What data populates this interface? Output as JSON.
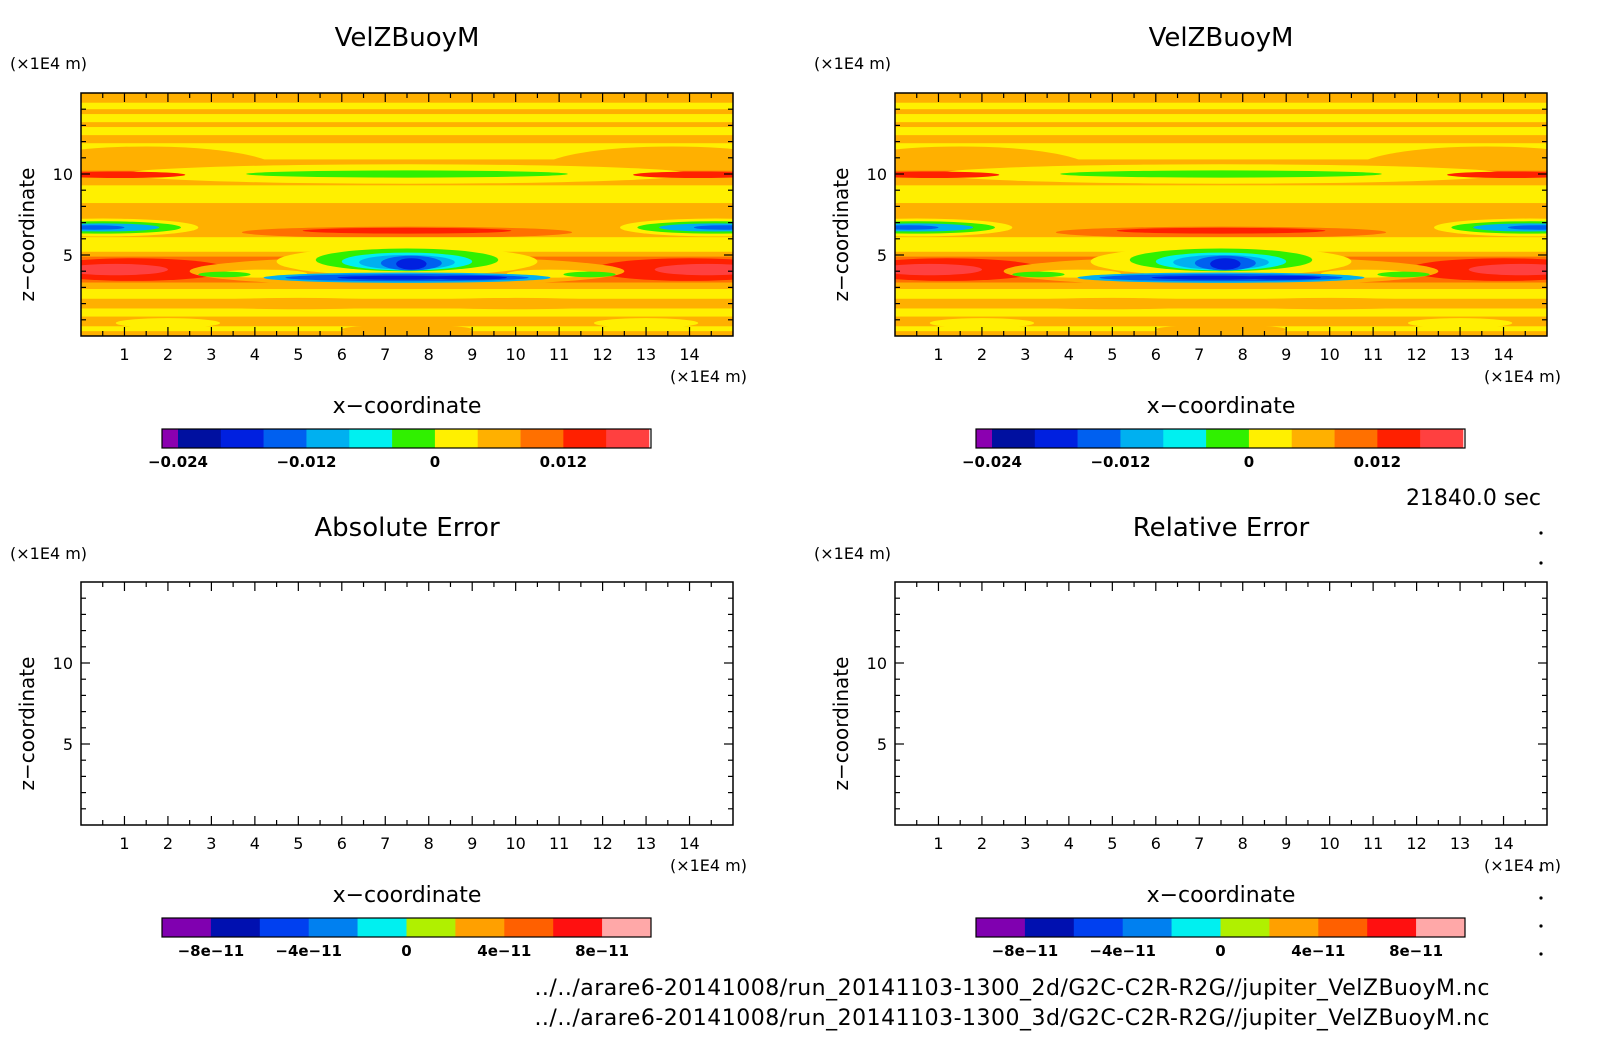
{
  "time_label": "21840.0 sec",
  "footer_lines": [
    "../../arare6-20141008/run_20141103-1300_2d/G2C-C2R-R2G//jupiter_VelZBuoyM.nc",
    "../../arare6-20141008/run_20141103-1300_3d/G2C-C2R-R2G//jupiter_VelZBuoyM.nc"
  ],
  "chart_data": [
    {
      "type": "heatmap",
      "title": "VelZBuoyM",
      "xlabel": "x−coordinate",
      "ylabel": "z−coordinate",
      "x_unit": "(×1E4 m)",
      "y_unit": "(×1E4 m)",
      "xlim": [
        0,
        15
      ],
      "ylim": [
        0,
        15
      ],
      "xticks": [
        "1",
        "2",
        "3",
        "4",
        "5",
        "6",
        "7",
        "8",
        "9",
        "10",
        "11",
        "12",
        "13",
        "14"
      ],
      "yticks": [
        "5",
        "10"
      ],
      "filled": true,
      "colorbar": {
        "colors": [
          "#8B00B0",
          "#0010A0",
          "#0020E0",
          "#0060F0",
          "#00B0F0",
          "#00F0F0",
          "#30F000",
          "#FFF000",
          "#FFB000",
          "#FF7000",
          "#FF2000",
          "#FF4040"
        ],
        "labels": [
          "−0.024",
          "−0.012",
          "0",
          "0.012"
        ],
        "label_values": [
          -0.024,
          -0.012,
          0,
          0.012
        ]
      }
    },
    {
      "type": "heatmap",
      "title": "VelZBuoyM",
      "xlabel": "x−coordinate",
      "ylabel": "z−coordinate",
      "x_unit": "(×1E4 m)",
      "y_unit": "(×1E4 m)",
      "xlim": [
        0,
        15
      ],
      "ylim": [
        0,
        15
      ],
      "xticks": [
        "1",
        "2",
        "3",
        "4",
        "5",
        "6",
        "7",
        "8",
        "9",
        "10",
        "11",
        "12",
        "13",
        "14"
      ],
      "yticks": [
        "5",
        "10"
      ],
      "filled": true,
      "colorbar": {
        "colors": [
          "#8B00B0",
          "#0010A0",
          "#0020E0",
          "#0060F0",
          "#00B0F0",
          "#00F0F0",
          "#30F000",
          "#FFF000",
          "#FFB000",
          "#FF7000",
          "#FF2000",
          "#FF4040"
        ],
        "labels": [
          "−0.024",
          "−0.012",
          "0",
          "0.012"
        ],
        "label_values": [
          -0.024,
          -0.012,
          0,
          0.012
        ]
      }
    },
    {
      "type": "heatmap",
      "title": "Absolute Error",
      "xlabel": "x−coordinate",
      "ylabel": "z−coordinate",
      "x_unit": "(×1E4 m)",
      "y_unit": "(×1E4 m)",
      "xlim": [
        0,
        15
      ],
      "ylim": [
        0,
        15
      ],
      "xticks": [
        "1",
        "2",
        "3",
        "4",
        "5",
        "6",
        "7",
        "8",
        "9",
        "10",
        "11",
        "12",
        "13",
        "14"
      ],
      "yticks": [
        "5",
        "10"
      ],
      "filled": false,
      "colorbar": {
        "colors": [
          "#8000B0",
          "#0010B0",
          "#0040F0",
          "#0080F0",
          "#00F0F0",
          "#B0F000",
          "#FFA000",
          "#FF6000",
          "#FF1010",
          "#FFA8A8"
        ],
        "labels": [
          "−8e−11",
          "−4e−11",
          "0",
          "4e−11",
          "8e−11"
        ],
        "label_values": [
          -8e-11,
          -4e-11,
          0,
          4e-11,
          8e-11
        ]
      }
    },
    {
      "type": "heatmap",
      "title": "Relative Error",
      "xlabel": "x−coordinate",
      "ylabel": "z−coordinate",
      "x_unit": "(×1E4 m)",
      "y_unit": "(×1E4 m)",
      "xlim": [
        0,
        15
      ],
      "ylim": [
        0,
        15
      ],
      "xticks": [
        "1",
        "2",
        "3",
        "4",
        "5",
        "6",
        "7",
        "8",
        "9",
        "10",
        "11",
        "12",
        "13",
        "14"
      ],
      "yticks": [
        "5",
        "10"
      ],
      "filled": false,
      "colorbar": {
        "colors": [
          "#8000B0",
          "#0010B0",
          "#0040F0",
          "#0080F0",
          "#00F0F0",
          "#B0F000",
          "#FFA000",
          "#FF6000",
          "#FF1010",
          "#FFA8A8"
        ],
        "labels": [
          "−8e−11",
          "−4e−11",
          "0",
          "4e−11",
          "8e−11"
        ],
        "label_values": [
          -8e-11,
          -4e-11,
          0,
          4e-11,
          8e-11
        ]
      }
    }
  ]
}
